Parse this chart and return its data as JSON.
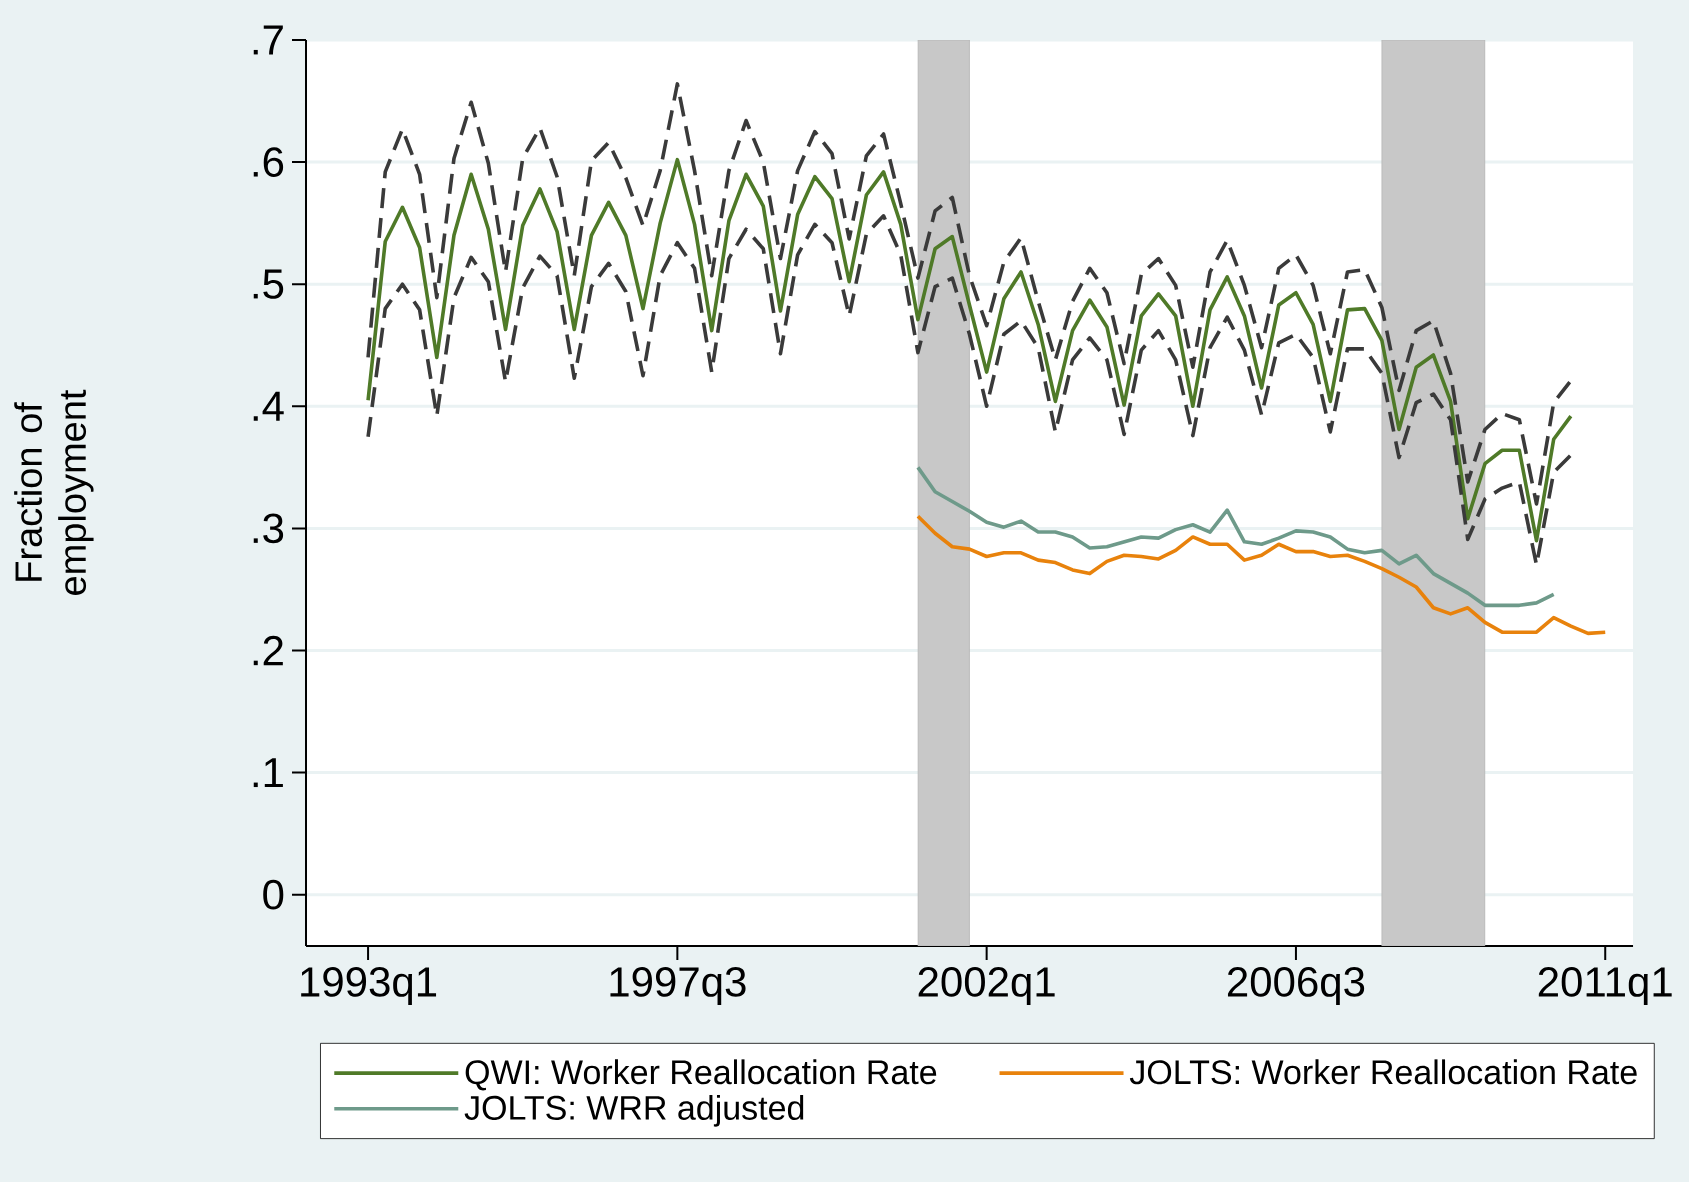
{
  "chart_data": {
    "type": "line",
    "ylabel": "Fraction of employment",
    "xlim": [
      "1992-02-06",
      "2011-05-27"
    ],
    "ylim": [
      -0.042,
      0.7
    ],
    "xticks": [
      {
        "value": "1993-01",
        "label": "1993q1"
      },
      {
        "value": "1997-07",
        "label": "1997q3"
      },
      {
        "value": "2002-01",
        "label": "2002q1"
      },
      {
        "value": "2006-07",
        "label": "2006q3"
      },
      {
        "value": "2011-01",
        "label": "2011q1"
      }
    ],
    "yticks": [
      0,
      {
        "value": 0.1,
        "label": ".1"
      },
      {
        "value": 0.2,
        "label": ".2"
      },
      {
        "value": 0.3,
        "label": ".3"
      },
      {
        "value": 0.4,
        "label": ".4"
      },
      {
        "value": 0.5,
        "label": ".5"
      },
      {
        "value": 0.6,
        "label": ".6"
      },
      {
        "value": 0.7,
        "label": ".7"
      }
    ],
    "grid": "y",
    "legend": "bottom",
    "bands": [
      {
        "axis": "x",
        "from": "2001-01",
        "to": "2001-10",
        "color": "#c8c8c8"
      },
      {
        "axis": "x",
        "from": "2007-10",
        "to": "2009-04",
        "color": "#c8c8c8"
      }
    ],
    "series": [
      {
        "name": "QWI: Worker Reallocation Rate",
        "color": "#4f7a28",
        "line_style": "solid",
        "x": [
          "1993-01",
          "1993-04",
          "1993-07",
          "1993-10",
          "1994-01",
          "1994-04",
          "1994-07",
          "1994-10",
          "1995-01",
          "1995-04",
          "1995-07",
          "1995-10",
          "1996-01",
          "1996-04",
          "1996-07",
          "1996-10",
          "1997-01",
          "1997-04",
          "1997-07",
          "1997-10",
          "1998-01",
          "1998-04",
          "1998-07",
          "1998-10",
          "1999-01",
          "1999-04",
          "1999-07",
          "1999-10",
          "2000-01",
          "2000-04",
          "2000-07",
          "2000-10",
          "2001-01",
          "2001-04",
          "2001-07",
          "2001-10",
          "2002-01",
          "2002-04",
          "2002-07",
          "2002-10",
          "2003-01",
          "2003-04",
          "2003-07",
          "2003-10",
          "2004-01",
          "2004-04",
          "2004-07",
          "2004-10",
          "2005-01",
          "2005-04",
          "2005-07",
          "2005-10",
          "2006-01",
          "2006-04",
          "2006-07",
          "2006-10",
          "2007-01",
          "2007-04",
          "2007-07",
          "2007-10",
          "2008-01",
          "2008-04",
          "2008-07",
          "2008-10",
          "2009-01",
          "2009-04",
          "2009-07",
          "2009-10",
          "2010-01",
          "2010-04",
          "2010-07"
        ],
        "values": [
          0.405,
          0.535,
          0.563,
          0.53,
          0.44,
          0.54,
          0.59,
          0.545,
          0.463,
          0.548,
          0.578,
          0.543,
          0.463,
          0.54,
          0.567,
          0.54,
          0.48,
          0.55,
          0.602,
          0.549,
          0.462,
          0.552,
          0.59,
          0.564,
          0.478,
          0.557,
          0.588,
          0.57,
          0.502,
          0.573,
          0.592,
          0.549,
          0.471,
          0.529,
          0.539,
          0.483,
          0.428,
          0.488,
          0.51,
          0.467,
          0.404,
          0.462,
          0.487,
          0.465,
          0.401,
          0.474,
          0.492,
          0.474,
          0.4,
          0.479,
          0.506,
          0.474,
          0.415,
          0.483,
          0.493,
          0.467,
          0.404,
          0.479,
          0.48,
          0.454,
          0.381,
          0.432,
          0.442,
          0.404,
          0.308,
          0.353,
          0.364,
          0.364,
          0.29,
          0.373,
          0.392
        ]
      },
      {
        "name": "JOLTS: Worker Reallocation Rate",
        "color": "#e8820c",
        "line_style": "solid",
        "x": [
          "2001-01",
          "2001-04",
          "2001-07",
          "2001-10",
          "2002-01",
          "2002-04",
          "2002-07",
          "2002-10",
          "2003-01",
          "2003-04",
          "2003-07",
          "2003-10",
          "2004-01",
          "2004-04",
          "2004-07",
          "2004-10",
          "2005-01",
          "2005-04",
          "2005-07",
          "2005-10",
          "2006-01",
          "2006-04",
          "2006-07",
          "2006-10",
          "2007-01",
          "2007-04",
          "2007-07",
          "2007-10",
          "2008-01",
          "2008-04",
          "2008-07",
          "2008-10",
          "2009-01",
          "2009-04",
          "2009-07",
          "2009-10",
          "2010-01",
          "2010-04",
          "2010-07",
          "2010-10",
          "2011-01"
        ],
        "values": [
          0.31,
          0.296,
          0.285,
          0.283,
          0.277,
          0.28,
          0.28,
          0.274,
          0.272,
          0.266,
          0.263,
          0.273,
          0.278,
          0.277,
          0.275,
          0.282,
          0.293,
          0.287,
          0.287,
          0.274,
          0.278,
          0.287,
          0.281,
          0.281,
          0.277,
          0.278,
          0.273,
          0.267,
          0.26,
          0.252,
          0.235,
          0.23,
          0.235,
          0.223,
          0.215,
          0.215,
          0.215,
          0.227,
          0.22,
          0.214,
          0.215
        ]
      },
      {
        "name": "JOLTS: WRR adjusted",
        "color": "#6e9a8a",
        "line_style": "solid",
        "x": [
          "2001-01",
          "2001-04",
          "2001-07",
          "2001-10",
          "2002-01",
          "2002-04",
          "2002-07",
          "2002-10",
          "2003-01",
          "2003-04",
          "2003-07",
          "2003-10",
          "2004-01",
          "2004-04",
          "2004-07",
          "2004-10",
          "2005-01",
          "2005-04",
          "2005-07",
          "2005-10",
          "2006-01",
          "2006-04",
          "2006-07",
          "2006-10",
          "2007-01",
          "2007-04",
          "2007-07",
          "2007-10",
          "2008-01",
          "2008-04",
          "2008-07",
          "2008-10",
          "2009-01",
          "2009-04",
          "2009-07",
          "2009-10",
          "2010-01",
          "2010-04"
        ],
        "values": [
          0.35,
          0.33,
          0.322,
          0.314,
          0.305,
          0.301,
          0.306,
          0.297,
          0.297,
          0.293,
          0.284,
          0.285,
          0.289,
          0.293,
          0.292,
          0.299,
          0.303,
          0.297,
          0.315,
          0.289,
          0.287,
          0.292,
          0.298,
          0.297,
          0.293,
          0.283,
          0.28,
          0.282,
          0.271,
          0.278,
          0.263,
          0.255,
          0.247,
          0.237,
          0.237,
          0.237,
          0.239,
          0.246
        ]
      },
      {
        "color": "#3a3a3a",
        "line_style": "dashed",
        "x": [
          "1993-01",
          "1993-04",
          "1993-07",
          "1993-10",
          "1994-01",
          "1994-04",
          "1994-07",
          "1994-10",
          "1995-01",
          "1995-04",
          "1995-07",
          "1995-10",
          "1996-01",
          "1996-04",
          "1996-07",
          "1996-10",
          "1997-01",
          "1997-04",
          "1997-07",
          "1997-10",
          "1998-01",
          "1998-04",
          "1998-07",
          "1998-10",
          "1999-01",
          "1999-04",
          "1999-07",
          "1999-10",
          "2000-01",
          "2000-04",
          "2000-07",
          "2000-10",
          "2001-01",
          "2001-04",
          "2001-07",
          "2001-10",
          "2002-01",
          "2002-04",
          "2002-07",
          "2002-10",
          "2003-01",
          "2003-04",
          "2003-07",
          "2003-10",
          "2004-01",
          "2004-04",
          "2004-07",
          "2004-10",
          "2005-01",
          "2005-04",
          "2005-07",
          "2005-10",
          "2006-01",
          "2006-04",
          "2006-07",
          "2006-10",
          "2007-01",
          "2007-04",
          "2007-07",
          "2007-10",
          "2008-01",
          "2008-04",
          "2008-07",
          "2008-10",
          "2009-01",
          "2009-04",
          "2009-07",
          "2009-10",
          "2010-01",
          "2010-04",
          "2010-07"
        ],
        "values": [
          0.375,
          0.48,
          0.5,
          0.479,
          0.392,
          0.489,
          0.522,
          0.502,
          0.42,
          0.497,
          0.523,
          0.507,
          0.423,
          0.498,
          0.517,
          0.494,
          0.425,
          0.507,
          0.534,
          0.513,
          0.428,
          0.521,
          0.545,
          0.529,
          0.443,
          0.524,
          0.549,
          0.534,
          0.474,
          0.541,
          0.556,
          0.524,
          0.444,
          0.498,
          0.505,
          0.459,
          0.4,
          0.459,
          0.47,
          0.448,
          0.379,
          0.438,
          0.456,
          0.438,
          0.377,
          0.446,
          0.462,
          0.438,
          0.376,
          0.448,
          0.473,
          0.446,
          0.393,
          0.452,
          0.459,
          0.44,
          0.379,
          0.447,
          0.447,
          0.427,
          0.358,
          0.403,
          0.41,
          0.389,
          0.291,
          0.324,
          0.333,
          0.338,
          0.27,
          0.346,
          0.36
        ]
      },
      {
        "color": "#3a3a3a",
        "line_style": "dashed",
        "x": [
          "1993-01",
          "1993-04",
          "1993-07",
          "1993-10",
          "1994-01",
          "1994-04",
          "1994-07",
          "1994-10",
          "1995-01",
          "1995-04",
          "1995-07",
          "1995-10",
          "1996-01",
          "1996-04",
          "1996-07",
          "1996-10",
          "1997-01",
          "1997-04",
          "1997-07",
          "1997-10",
          "1998-01",
          "1998-04",
          "1998-07",
          "1998-10",
          "1999-01",
          "1999-04",
          "1999-07",
          "1999-10",
          "2000-01",
          "2000-04",
          "2000-07",
          "2000-10",
          "2001-01",
          "2001-04",
          "2001-07",
          "2001-10",
          "2002-01",
          "2002-04",
          "2002-07",
          "2002-10",
          "2003-01",
          "2003-04",
          "2003-07",
          "2003-10",
          "2004-01",
          "2004-04",
          "2004-07",
          "2004-10",
          "2005-01",
          "2005-04",
          "2005-07",
          "2005-10",
          "2006-01",
          "2006-04",
          "2006-07",
          "2006-10",
          "2007-01",
          "2007-04",
          "2007-07",
          "2007-10",
          "2008-01",
          "2008-04",
          "2008-07",
          "2008-10",
          "2009-01",
          "2009-04",
          "2009-07",
          "2009-10",
          "2010-01",
          "2010-04",
          "2010-07"
        ],
        "values": [
          0.44,
          0.592,
          0.627,
          0.59,
          0.489,
          0.603,
          0.649,
          0.599,
          0.51,
          0.603,
          0.628,
          0.588,
          0.507,
          0.601,
          0.616,
          0.587,
          0.548,
          0.593,
          0.664,
          0.593,
          0.507,
          0.593,
          0.634,
          0.6,
          0.521,
          0.593,
          0.625,
          0.607,
          0.537,
          0.605,
          0.623,
          0.566,
          0.505,
          0.56,
          0.571,
          0.507,
          0.466,
          0.518,
          0.538,
          0.486,
          0.438,
          0.486,
          0.513,
          0.493,
          0.435,
          0.508,
          0.521,
          0.499,
          0.432,
          0.51,
          0.536,
          0.499,
          0.448,
          0.513,
          0.524,
          0.499,
          0.443,
          0.51,
          0.512,
          0.481,
          0.413,
          0.462,
          0.47,
          0.427,
          0.338,
          0.381,
          0.394,
          0.389,
          0.32,
          0.403,
          0.421
        ]
      }
    ]
  }
}
